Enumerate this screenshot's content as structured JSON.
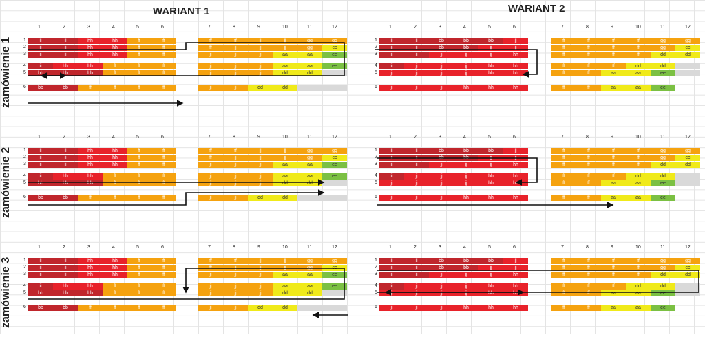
{
  "titles": [
    "WARIANT 1",
    "WARIANT 2"
  ],
  "side_labels": [
    "zamówienie 1",
    "zamówienie 2",
    "zamówienie 3"
  ],
  "columns": [
    "1",
    "2",
    "3",
    "4",
    "5",
    "6",
    "7",
    "8",
    "9",
    "10",
    "11",
    "12"
  ],
  "row_labels": [
    "1",
    "2",
    "3",
    "4",
    "5",
    "6"
  ],
  "colors": {
    "ii": "#c0262c",
    "bb": "#c0262c",
    "hh": "#e8222a",
    "jj_red": "#e8222a",
    "ff": "#f5a20f",
    "jj": "#f5a20f",
    "gg": "#f5a20f",
    "aa": "#f0ea1a",
    "dd": "#f0ea1a",
    "cc": "#f0ea1a",
    "ee": "#7bc043",
    "empty": "#d9d9d9"
  },
  "w1_rows": [
    [
      "ii",
      "ii",
      "hh",
      "hh",
      "ff",
      "ff",
      "",
      "ff",
      "ff",
      "jj",
      "jj",
      "gg",
      "gg"
    ],
    [
      "ii",
      "ii",
      "hh",
      "hh",
      "ff",
      "ff",
      "",
      "ff",
      "jj",
      "jj",
      "jj",
      "gg",
      "cc"
    ],
    [
      "ii",
      "ii",
      "hh",
      "hh",
      "ff",
      "ff",
      "",
      "jj",
      "jj",
      "jj",
      "aa",
      "aa",
      "ee"
    ],
    [
      "ii",
      "hh",
      "hh",
      "ff",
      "ff",
      "ff",
      "",
      "jj",
      "jj",
      "jj",
      "aa",
      "aa",
      "ee"
    ],
    [
      "bb",
      "bb",
      "bb",
      "ff",
      "ff",
      "ff",
      "",
      "jj",
      "jj",
      "jj",
      "dd",
      "dd",
      ""
    ],
    [
      "bb",
      "bb",
      "ff",
      "ff",
      "ff",
      "ff",
      "",
      "jj",
      "jj",
      "dd",
      "dd",
      "",
      ""
    ]
  ],
  "w2_rows": [
    [
      "ii",
      "ii",
      "bb",
      "bb",
      "bb",
      "jj",
      "",
      "ff",
      "ff",
      "ff",
      "ff",
      "gg",
      "gg"
    ],
    [
      "ii",
      "ii",
      "bb",
      "bb",
      "jj",
      "jj",
      "",
      "ff",
      "ff",
      "ff",
      "ff",
      "gg",
      "cc"
    ],
    [
      "ii",
      "ii",
      "jj",
      "jj",
      "jj",
      "hh",
      "",
      "ff",
      "ff",
      "ff",
      "ff",
      "dd",
      "dd"
    ],
    [
      "ii",
      "jj",
      "jj",
      "jj",
      "hh",
      "hh",
      "",
      "ff",
      "ff",
      "ff",
      "dd",
      "dd",
      ""
    ],
    [
      "jj",
      "jj",
      "jj",
      "jj",
      "hh",
      "hh",
      "",
      "ff",
      "ff",
      "aa",
      "aa",
      "ee",
      ""
    ],
    [
      "jj",
      "jj",
      "jj",
      "hh",
      "hh",
      "hh",
      "",
      "ff",
      "ff",
      "aa",
      "aa",
      "ee",
      ""
    ]
  ]
}
